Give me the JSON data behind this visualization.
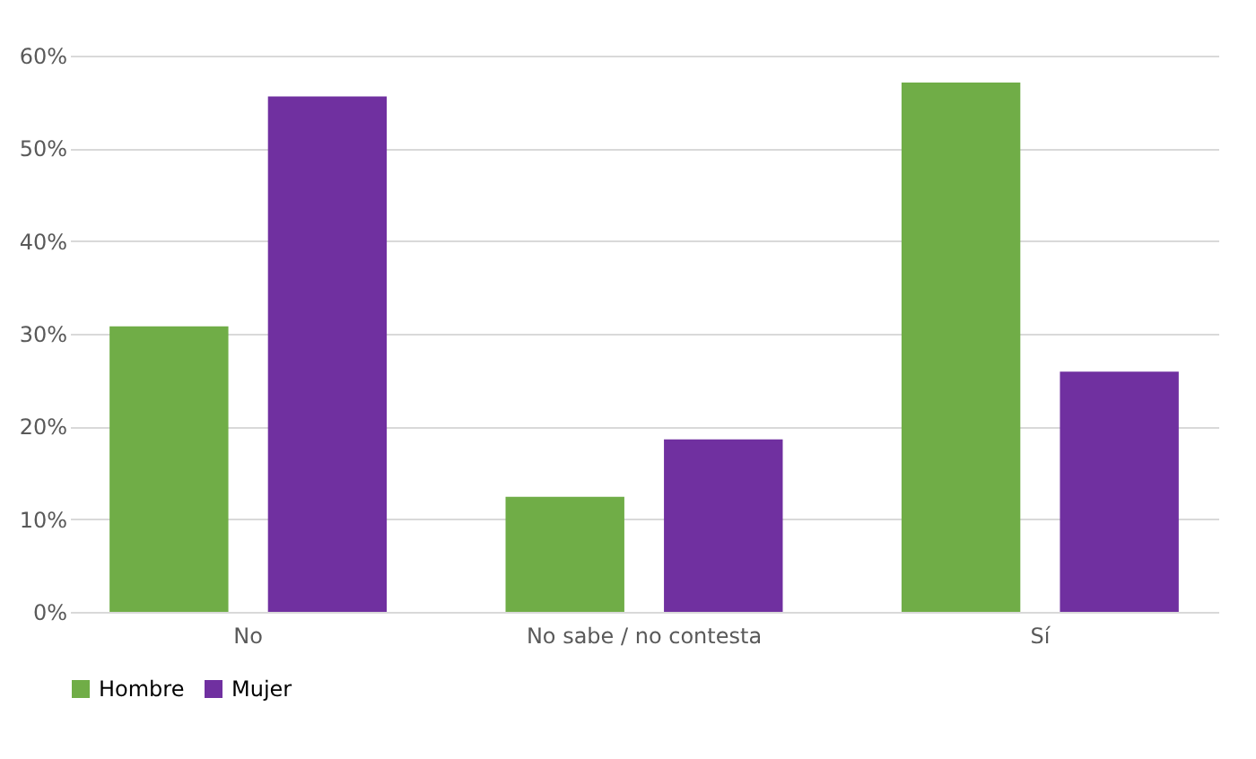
{
  "chart_data": {
    "type": "bar",
    "categories": [
      "No",
      "No sabe / no contesta",
      "Sí"
    ],
    "series": [
      {
        "name": "Hombre",
        "color": "#70ad47",
        "values": [
          30.8,
          12.4,
          57.1
        ]
      },
      {
        "name": "Mujer",
        "color": "#7030a0",
        "values": [
          55.6,
          18.6,
          25.9
        ]
      }
    ],
    "ylim": [
      0,
      60
    ],
    "yticks": [
      {
        "value": 0,
        "label": "0%"
      },
      {
        "value": 10,
        "label": "10%"
      },
      {
        "value": 20,
        "label": "20%"
      },
      {
        "value": 30,
        "label": "30%"
      },
      {
        "value": 40,
        "label": "40%"
      },
      {
        "value": 50,
        "label": "50%"
      },
      {
        "value": 60,
        "label": "60%"
      }
    ],
    "grid": "y",
    "legend": "bottom"
  }
}
